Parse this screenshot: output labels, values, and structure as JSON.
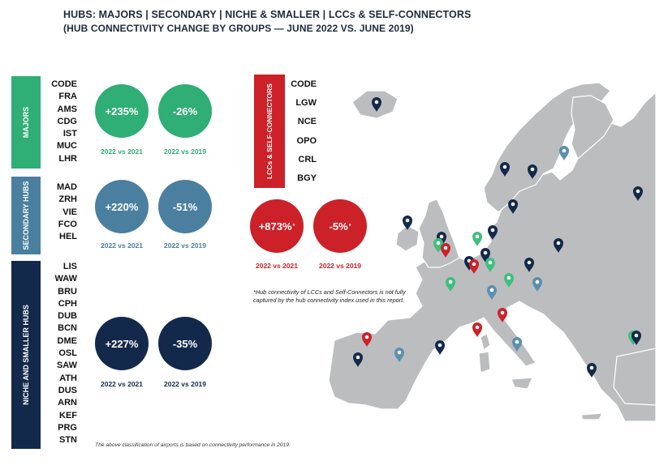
{
  "title_line1": "HUBS: MAJORS | SECONDARY | NICHE & SMALLER | LCCs & SELF-CONNECTORS",
  "title_line2": "(HUB CONNECTIVITY CHANGE BY GROUPS —  JUNE 2022 VS. JUNE 2019)",
  "groups": [
    {
      "label": "MAJORS",
      "color": "#2fae75",
      "header": "CODE",
      "codes": [
        "FRA",
        "AMS",
        "CDG",
        "IST",
        "MUC",
        "LHR"
      ],
      "change_2022_vs_2021": "+235%",
      "change_2022_vs_2019": "-26%",
      "caption_2021": "2022 vs 2021",
      "caption_2019": "2022 vs 2019"
    },
    {
      "label": "SECONDARY HUBS",
      "color": "#4a7fa0",
      "header": "",
      "codes": [
        "MAD",
        "ZRH",
        "VIE",
        "FCO",
        "HEL"
      ],
      "change_2022_vs_2021": "+220%",
      "change_2022_vs_2019": "-51%",
      "caption_2021": "2022 vs 2021",
      "caption_2019": "2022 vs 2019"
    },
    {
      "label": "NICHE AND SMALLER HUBS",
      "color": "#13294b",
      "header": "",
      "codes": [
        "LIS",
        "WAW",
        "BRU",
        "CPH",
        "DUB",
        "BCN",
        "DME",
        "OSL",
        "SAW",
        "ATH",
        "DUS",
        "ARN",
        "KEF",
        "PRG",
        "STN"
      ],
      "change_2022_vs_2021": "+227%",
      "change_2022_vs_2019": "-35%",
      "caption_2021": "2022 vs 2021",
      "caption_2019": "2022 vs 2019"
    },
    {
      "label": "LCCs & SELF-CONNECTORS",
      "color": "#cc2128",
      "header": "CODE",
      "codes": [
        "LGW",
        "NCE",
        "OPO",
        "CRL",
        "BGY"
      ],
      "change_2022_vs_2021": "+873%",
      "change_2022_vs_2019": "-5%",
      "asterisk": "*",
      "caption_2021": "2022 vs 2021",
      "caption_2019": "2022 vs 2019"
    }
  ],
  "lcc_note": "*Hub connectivity of LCCs and Self-Connectors is not fully captured by the hub connectivity index used in this report.",
  "footnote": "The above classification of airports is based on connectivity performance in 2019.",
  "colors": {
    "map_land": "#bcbdbf",
    "map_border": "#ffffff"
  },
  "chart_data": {
    "type": "table",
    "title": "HUBS: MAJORS | SECONDARY | NICHE & SMALLER | LCCs & SELF-CONNECTORS",
    "subtitle": "(HUB CONNECTIVITY CHANGE BY GROUPS —  JUNE 2022 VS. JUNE 2019)",
    "categories": [
      "MAJORS",
      "SECONDARY HUBS",
      "NICHE AND SMALLER HUBS",
      "LCCs & SELF-CONNECTORS"
    ],
    "series": [
      {
        "name": "2022 vs 2021",
        "values": [
          235,
          220,
          227,
          873
        ]
      },
      {
        "name": "2022 vs 2019",
        "values": [
          -26,
          -51,
          -35,
          -5
        ]
      }
    ]
  }
}
